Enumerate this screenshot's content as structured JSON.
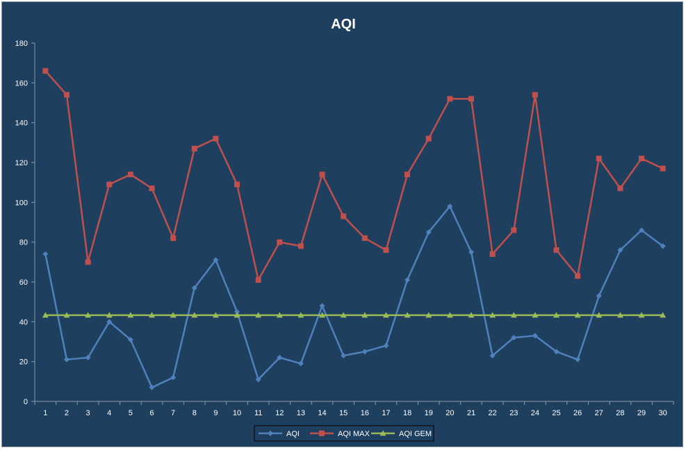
{
  "chart_data": {
    "type": "line",
    "title": "AQI",
    "xlabel": "",
    "ylabel": "",
    "categories": [
      "1",
      "2",
      "3",
      "4",
      "5",
      "6",
      "7",
      "8",
      "9",
      "10",
      "11",
      "12",
      "13",
      "14",
      "15",
      "16",
      "17",
      "18",
      "19",
      "20",
      "21",
      "22",
      "23",
      "24",
      "25",
      "26",
      "27",
      "28",
      "29",
      "30"
    ],
    "ylim": [
      0,
      180
    ],
    "yticks": [
      0,
      20,
      40,
      60,
      80,
      100,
      120,
      140,
      160,
      180
    ],
    "grid": false,
    "legend": "bottom",
    "series": [
      {
        "name": "AQI",
        "color": "#4f81bd",
        "marker": "diamond",
        "values": [
          74,
          21,
          22,
          40,
          31,
          7,
          12,
          57,
          71,
          45,
          11,
          22,
          19,
          48,
          23,
          25,
          28,
          61,
          85,
          98,
          75,
          23,
          32,
          33,
          25,
          21,
          53,
          76,
          86,
          78
        ]
      },
      {
        "name": "AQI MAX",
        "color": "#c0504d",
        "marker": "square",
        "values": [
          166,
          154,
          70,
          109,
          114,
          107,
          82,
          127,
          132,
          109,
          61,
          80,
          78,
          114,
          93,
          82,
          76,
          114,
          132,
          152,
          152,
          74,
          86,
          154,
          76,
          63,
          122,
          107,
          122,
          117
        ]
      },
      {
        "name": "AQI GEM",
        "color": "#9bbb59",
        "marker": "triangle",
        "values": [
          43.3,
          43.3,
          43.3,
          43.3,
          43.3,
          43.3,
          43.3,
          43.3,
          43.3,
          43.3,
          43.3,
          43.3,
          43.3,
          43.3,
          43.3,
          43.3,
          43.3,
          43.3,
          43.3,
          43.3,
          43.3,
          43.3,
          43.3,
          43.3,
          43.3,
          43.3,
          43.3,
          43.3,
          43.3,
          43.3
        ]
      }
    ]
  },
  "colors": {
    "background": "#1f3f5f",
    "axis": "#8a9aaa",
    "text": "#ffffff"
  }
}
